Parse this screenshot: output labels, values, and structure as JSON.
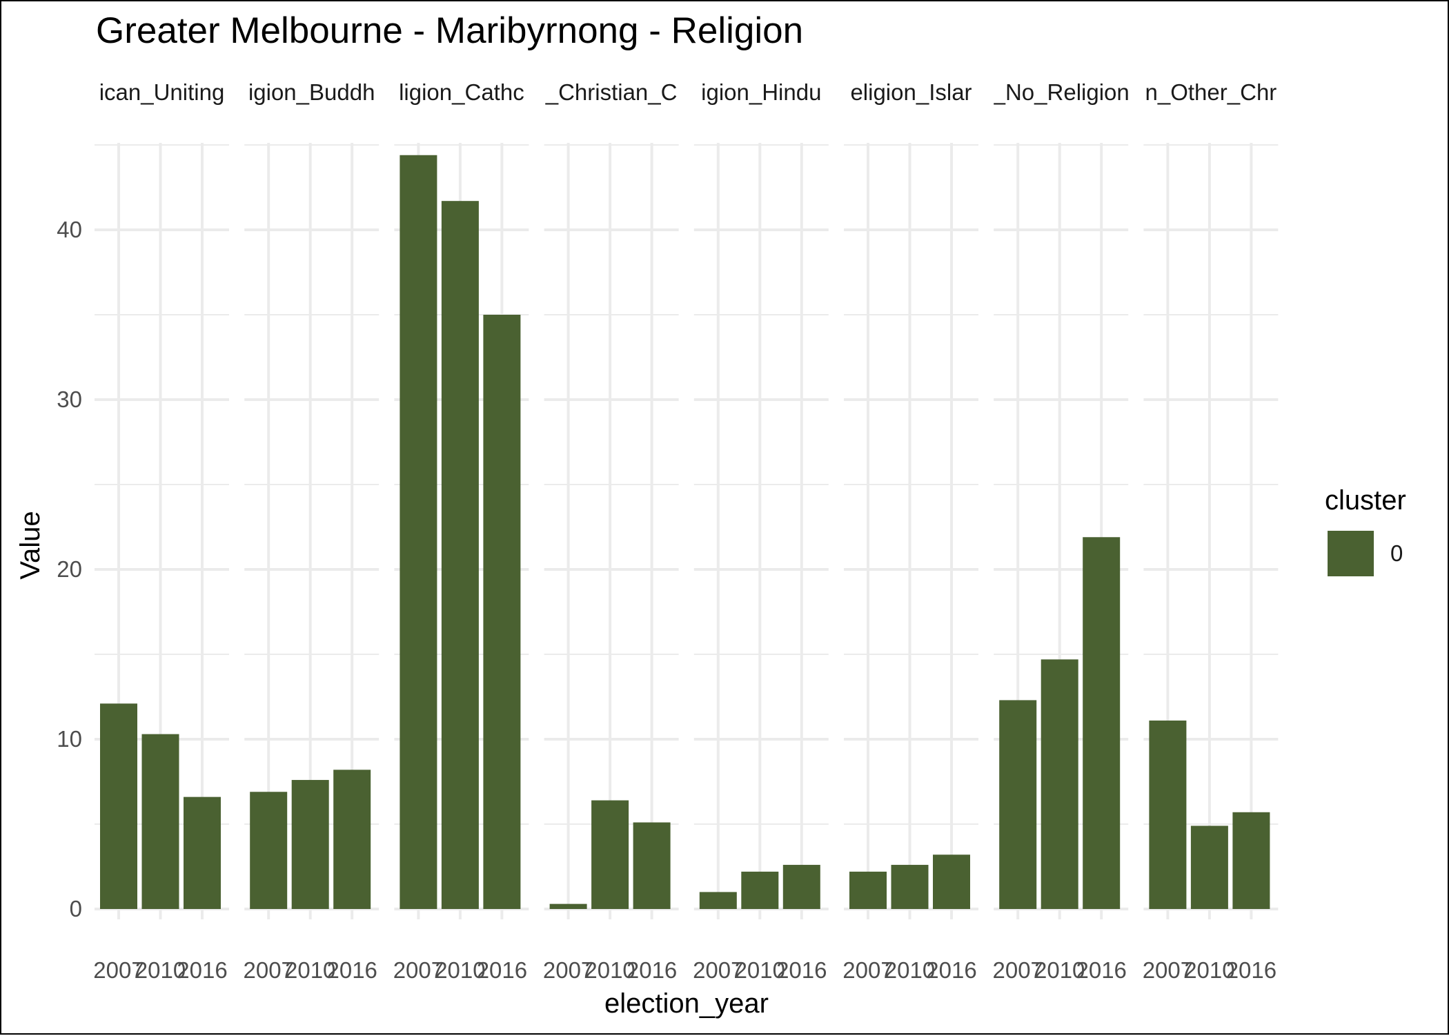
{
  "chart_data": {
    "type": "bar",
    "title": "Greater Melbourne - Maribyrnong - Religion",
    "xlabel": "election_year",
    "ylabel": "Value",
    "categories": [
      "2007",
      "2010",
      "2016"
    ],
    "ylim": [
      0,
      45
    ],
    "yticks": [
      0,
      10,
      20,
      30,
      40
    ],
    "grid": true,
    "bar_color": "#4a6131",
    "facets": [
      {
        "label": "Religion_Anglican_Uniting",
        "strip_text": "ican_Uniting",
        "values": [
          12.1,
          10.3,
          6.6
        ]
      },
      {
        "label": "Religion_Buddhism",
        "strip_text": "igion_Buddh",
        "values": [
          6.9,
          7.6,
          8.2
        ]
      },
      {
        "label": "Religion_Catholic",
        "strip_text": "ligion_Cathc",
        "values": [
          44.4,
          41.7,
          35.0
        ]
      },
      {
        "label": "Religion_Christian_Other",
        "strip_text": "_Christian_C",
        "values": [
          0.3,
          6.4,
          5.1
        ]
      },
      {
        "label": "Religion_Hinduism",
        "strip_text": "igion_Hindu",
        "values": [
          1.0,
          2.2,
          2.6
        ]
      },
      {
        "label": "Religion_Islam",
        "strip_text": "eligion_Islar",
        "values": [
          2.2,
          2.6,
          3.2
        ]
      },
      {
        "label": "Religion_No_Religion",
        "strip_text": "_No_Religion",
        "values": [
          12.3,
          14.7,
          21.9
        ]
      },
      {
        "label": "Religion_Other_Christian",
        "strip_text": "n_Other_Chr",
        "values": [
          11.1,
          4.9,
          5.7
        ]
      }
    ],
    "legend": {
      "title": "cluster",
      "entries": [
        {
          "label": "0",
          "color": "#4a6131"
        }
      ],
      "position": "right"
    }
  }
}
